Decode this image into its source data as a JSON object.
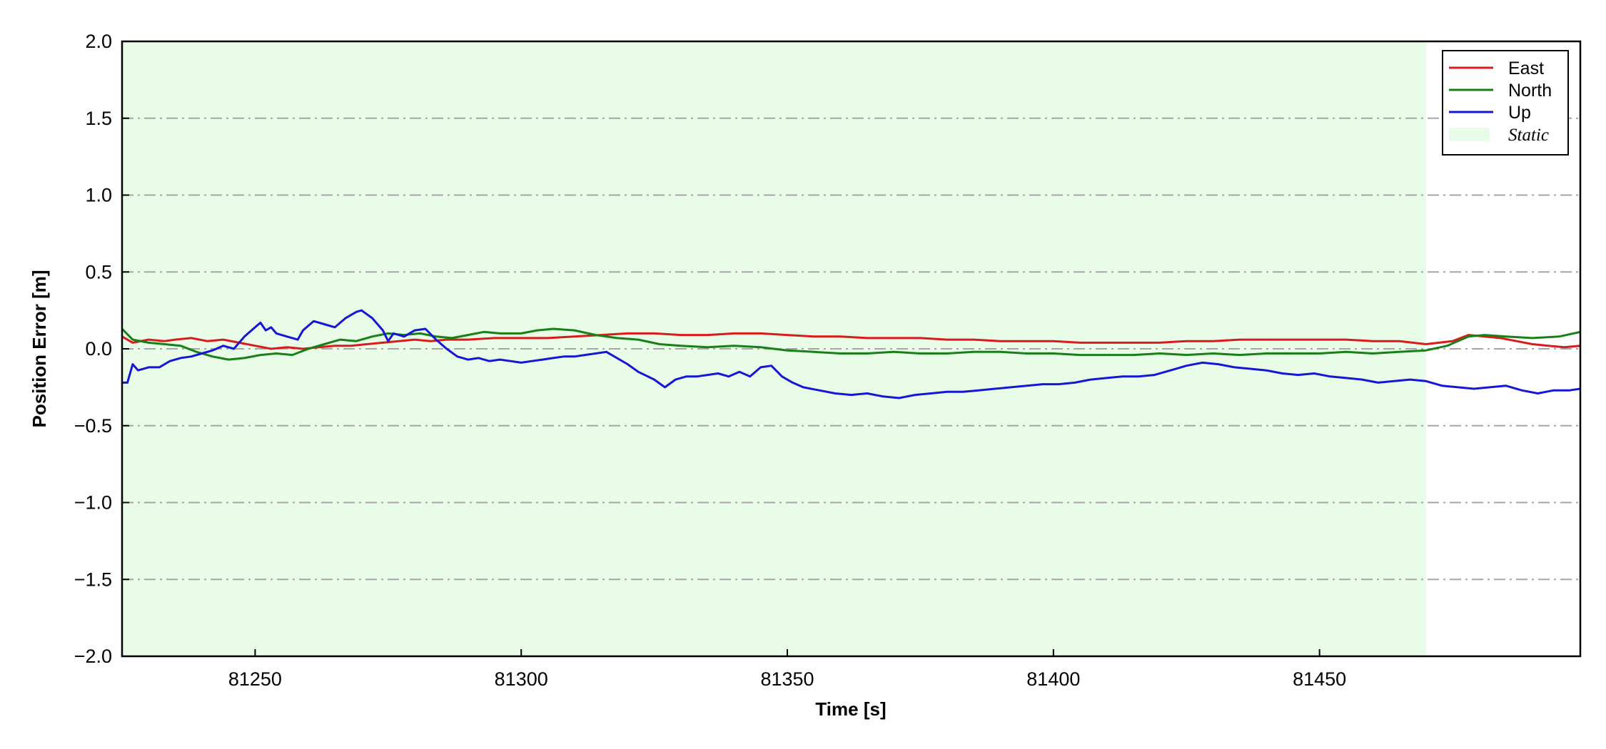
{
  "chart_data": {
    "type": "line",
    "title": "",
    "xlabel": "Time [s]",
    "ylabel": "Position Error [m]",
    "xlim": [
      81225,
      81499
    ],
    "ylim": [
      -2.0,
      2.0
    ],
    "xticks": [
      81250,
      81300,
      81350,
      81400,
      81450
    ],
    "yticks": [
      -2.0,
      -1.5,
      -1.0,
      -0.5,
      0.0,
      0.5,
      1.0,
      1.5,
      2.0
    ],
    "ytick_labels": [
      "−2.0",
      "−1.5",
      "−1.0",
      "−0.5",
      "0.0",
      "0.5",
      "1.0",
      "1.5",
      "2.0"
    ],
    "grid": "horizontal dash-dot",
    "legend_position": "top-right",
    "static_region": {
      "label": "Static",
      "x_start": 81225,
      "x_end": 81470,
      "color": "#e8fce8"
    },
    "series": [
      {
        "name": "East",
        "color": "#d81b1b",
        "points": [
          [
            81225,
            0.08
          ],
          [
            81227,
            0.04
          ],
          [
            81230,
            0.06
          ],
          [
            81233,
            0.05
          ],
          [
            81235,
            0.06
          ],
          [
            81238,
            0.07
          ],
          [
            81241,
            0.05
          ],
          [
            81244,
            0.06
          ],
          [
            81247,
            0.04
          ],
          [
            81250,
            0.02
          ],
          [
            81253,
            0.0
          ],
          [
            81256,
            0.01
          ],
          [
            81259,
            0.0
          ],
          [
            81262,
            0.01
          ],
          [
            81265,
            0.02
          ],
          [
            81268,
            0.02
          ],
          [
            81271,
            0.03
          ],
          [
            81274,
            0.04
          ],
          [
            81277,
            0.05
          ],
          [
            81280,
            0.06
          ],
          [
            81283,
            0.05
          ],
          [
            81286,
            0.06
          ],
          [
            81290,
            0.06
          ],
          [
            81295,
            0.07
          ],
          [
            81300,
            0.07
          ],
          [
            81305,
            0.07
          ],
          [
            81310,
            0.08
          ],
          [
            81315,
            0.09
          ],
          [
            81320,
            0.1
          ],
          [
            81325,
            0.1
          ],
          [
            81330,
            0.09
          ],
          [
            81335,
            0.09
          ],
          [
            81340,
            0.1
          ],
          [
            81345,
            0.1
          ],
          [
            81350,
            0.09
          ],
          [
            81355,
            0.08
          ],
          [
            81360,
            0.08
          ],
          [
            81365,
            0.07
          ],
          [
            81370,
            0.07
          ],
          [
            81375,
            0.07
          ],
          [
            81380,
            0.06
          ],
          [
            81385,
            0.06
          ],
          [
            81390,
            0.05
          ],
          [
            81395,
            0.05
          ],
          [
            81400,
            0.05
          ],
          [
            81405,
            0.04
          ],
          [
            81410,
            0.04
          ],
          [
            81415,
            0.04
          ],
          [
            81420,
            0.04
          ],
          [
            81425,
            0.05
          ],
          [
            81430,
            0.05
          ],
          [
            81435,
            0.06
          ],
          [
            81440,
            0.06
          ],
          [
            81445,
            0.06
          ],
          [
            81450,
            0.06
          ],
          [
            81455,
            0.06
          ],
          [
            81460,
            0.05
          ],
          [
            81465,
            0.05
          ],
          [
            81470,
            0.03
          ],
          [
            81475,
            0.05
          ],
          [
            81478,
            0.09
          ],
          [
            81481,
            0.08
          ],
          [
            81484,
            0.07
          ],
          [
            81487,
            0.05
          ],
          [
            81490,
            0.03
          ],
          [
            81493,
            0.02
          ],
          [
            81496,
            0.01
          ],
          [
            81499,
            0.02
          ]
        ]
      },
      {
        "name": "North",
        "color": "#178017",
        "points": [
          [
            81225,
            0.13
          ],
          [
            81227,
            0.06
          ],
          [
            81230,
            0.04
          ],
          [
            81233,
            0.03
          ],
          [
            81236,
            0.02
          ],
          [
            81239,
            -0.02
          ],
          [
            81242,
            -0.05
          ],
          [
            81245,
            -0.07
          ],
          [
            81248,
            -0.06
          ],
          [
            81251,
            -0.04
          ],
          [
            81254,
            -0.03
          ],
          [
            81257,
            -0.04
          ],
          [
            81260,
            0.0
          ],
          [
            81263,
            0.03
          ],
          [
            81266,
            0.06
          ],
          [
            81269,
            0.05
          ],
          [
            81272,
            0.08
          ],
          [
            81275,
            0.1
          ],
          [
            81278,
            0.09
          ],
          [
            81281,
            0.1
          ],
          [
            81284,
            0.08
          ],
          [
            81287,
            0.07
          ],
          [
            81290,
            0.09
          ],
          [
            81293,
            0.11
          ],
          [
            81296,
            0.1
          ],
          [
            81300,
            0.1
          ],
          [
            81303,
            0.12
          ],
          [
            81306,
            0.13
          ],
          [
            81310,
            0.12
          ],
          [
            81314,
            0.09
          ],
          [
            81318,
            0.07
          ],
          [
            81322,
            0.06
          ],
          [
            81326,
            0.03
          ],
          [
            81330,
            0.02
          ],
          [
            81335,
            0.01
          ],
          [
            81340,
            0.02
          ],
          [
            81345,
            0.01
          ],
          [
            81350,
            -0.01
          ],
          [
            81355,
            -0.02
          ],
          [
            81360,
            -0.03
          ],
          [
            81365,
            -0.03
          ],
          [
            81370,
            -0.02
          ],
          [
            81375,
            -0.03
          ],
          [
            81380,
            -0.03
          ],
          [
            81385,
            -0.02
          ],
          [
            81390,
            -0.02
          ],
          [
            81395,
            -0.03
          ],
          [
            81400,
            -0.03
          ],
          [
            81405,
            -0.04
          ],
          [
            81410,
            -0.04
          ],
          [
            81415,
            -0.04
          ],
          [
            81420,
            -0.03
          ],
          [
            81425,
            -0.04
          ],
          [
            81430,
            -0.03
          ],
          [
            81435,
            -0.04
          ],
          [
            81440,
            -0.03
          ],
          [
            81445,
            -0.03
          ],
          [
            81450,
            -0.03
          ],
          [
            81455,
            -0.02
          ],
          [
            81460,
            -0.03
          ],
          [
            81465,
            -0.02
          ],
          [
            81470,
            -0.01
          ],
          [
            81474,
            0.02
          ],
          [
            81478,
            0.08
          ],
          [
            81481,
            0.09
          ],
          [
            81485,
            0.08
          ],
          [
            81490,
            0.07
          ],
          [
            81495,
            0.08
          ],
          [
            81499,
            0.11
          ]
        ]
      },
      {
        "name": "Up",
        "color": "#1616d6",
        "points": [
          [
            81225,
            -0.22
          ],
          [
            81226,
            -0.22
          ],
          [
            81227,
            -0.1
          ],
          [
            81228,
            -0.14
          ],
          [
            81230,
            -0.12
          ],
          [
            81232,
            -0.12
          ],
          [
            81234,
            -0.08
          ],
          [
            81236,
            -0.06
          ],
          [
            81238,
            -0.05
          ],
          [
            81240,
            -0.03
          ],
          [
            81242,
            -0.01
          ],
          [
            81244,
            0.02
          ],
          [
            81246,
            0.0
          ],
          [
            81248,
            0.08
          ],
          [
            81250,
            0.14
          ],
          [
            81251,
            0.17
          ],
          [
            81252,
            0.12
          ],
          [
            81253,
            0.14
          ],
          [
            81254,
            0.1
          ],
          [
            81256,
            0.08
          ],
          [
            81258,
            0.06
          ],
          [
            81259,
            0.12
          ],
          [
            81261,
            0.18
          ],
          [
            81263,
            0.16
          ],
          [
            81265,
            0.14
          ],
          [
            81267,
            0.2
          ],
          [
            81269,
            0.24
          ],
          [
            81270,
            0.25
          ],
          [
            81272,
            0.2
          ],
          [
            81274,
            0.12
          ],
          [
            81275,
            0.05
          ],
          [
            81276,
            0.1
          ],
          [
            81278,
            0.08
          ],
          [
            81280,
            0.12
          ],
          [
            81282,
            0.13
          ],
          [
            81284,
            0.06
          ],
          [
            81286,
            0.0
          ],
          [
            81288,
            -0.05
          ],
          [
            81290,
            -0.07
          ],
          [
            81292,
            -0.06
          ],
          [
            81294,
            -0.08
          ],
          [
            81296,
            -0.07
          ],
          [
            81298,
            -0.08
          ],
          [
            81300,
            -0.09
          ],
          [
            81302,
            -0.08
          ],
          [
            81304,
            -0.07
          ],
          [
            81306,
            -0.06
          ],
          [
            81308,
            -0.05
          ],
          [
            81310,
            -0.05
          ],
          [
            81312,
            -0.04
          ],
          [
            81314,
            -0.03
          ],
          [
            81316,
            -0.02
          ],
          [
            81318,
            -0.06
          ],
          [
            81320,
            -0.1
          ],
          [
            81322,
            -0.15
          ],
          [
            81325,
            -0.2
          ],
          [
            81327,
            -0.25
          ],
          [
            81329,
            -0.2
          ],
          [
            81331,
            -0.18
          ],
          [
            81333,
            -0.18
          ],
          [
            81335,
            -0.17
          ],
          [
            81337,
            -0.16
          ],
          [
            81339,
            -0.18
          ],
          [
            81341,
            -0.15
          ],
          [
            81343,
            -0.18
          ],
          [
            81345,
            -0.12
          ],
          [
            81347,
            -0.11
          ],
          [
            81349,
            -0.18
          ],
          [
            81351,
            -0.22
          ],
          [
            81353,
            -0.25
          ],
          [
            81356,
            -0.27
          ],
          [
            81359,
            -0.29
          ],
          [
            81362,
            -0.3
          ],
          [
            81365,
            -0.29
          ],
          [
            81368,
            -0.31
          ],
          [
            81371,
            -0.32
          ],
          [
            81374,
            -0.3
          ],
          [
            81377,
            -0.29
          ],
          [
            81380,
            -0.28
          ],
          [
            81383,
            -0.28
          ],
          [
            81386,
            -0.27
          ],
          [
            81389,
            -0.26
          ],
          [
            81392,
            -0.25
          ],
          [
            81395,
            -0.24
          ],
          [
            81398,
            -0.23
          ],
          [
            81401,
            -0.23
          ],
          [
            81404,
            -0.22
          ],
          [
            81407,
            -0.2
          ],
          [
            81410,
            -0.19
          ],
          [
            81413,
            -0.18
          ],
          [
            81416,
            -0.18
          ],
          [
            81419,
            -0.17
          ],
          [
            81422,
            -0.14
          ],
          [
            81425,
            -0.11
          ],
          [
            81428,
            -0.09
          ],
          [
            81431,
            -0.1
          ],
          [
            81434,
            -0.12
          ],
          [
            81437,
            -0.13
          ],
          [
            81440,
            -0.14
          ],
          [
            81443,
            -0.16
          ],
          [
            81446,
            -0.17
          ],
          [
            81449,
            -0.16
          ],
          [
            81452,
            -0.18
          ],
          [
            81455,
            -0.19
          ],
          [
            81458,
            -0.2
          ],
          [
            81461,
            -0.22
          ],
          [
            81464,
            -0.21
          ],
          [
            81467,
            -0.2
          ],
          [
            81470,
            -0.21
          ],
          [
            81473,
            -0.24
          ],
          [
            81476,
            -0.25
          ],
          [
            81479,
            -0.26
          ],
          [
            81482,
            -0.25
          ],
          [
            81485,
            -0.24
          ],
          [
            81488,
            -0.27
          ],
          [
            81491,
            -0.29
          ],
          [
            81494,
            -0.27
          ],
          [
            81497,
            -0.27
          ],
          [
            81499,
            -0.26
          ]
        ]
      }
    ]
  }
}
